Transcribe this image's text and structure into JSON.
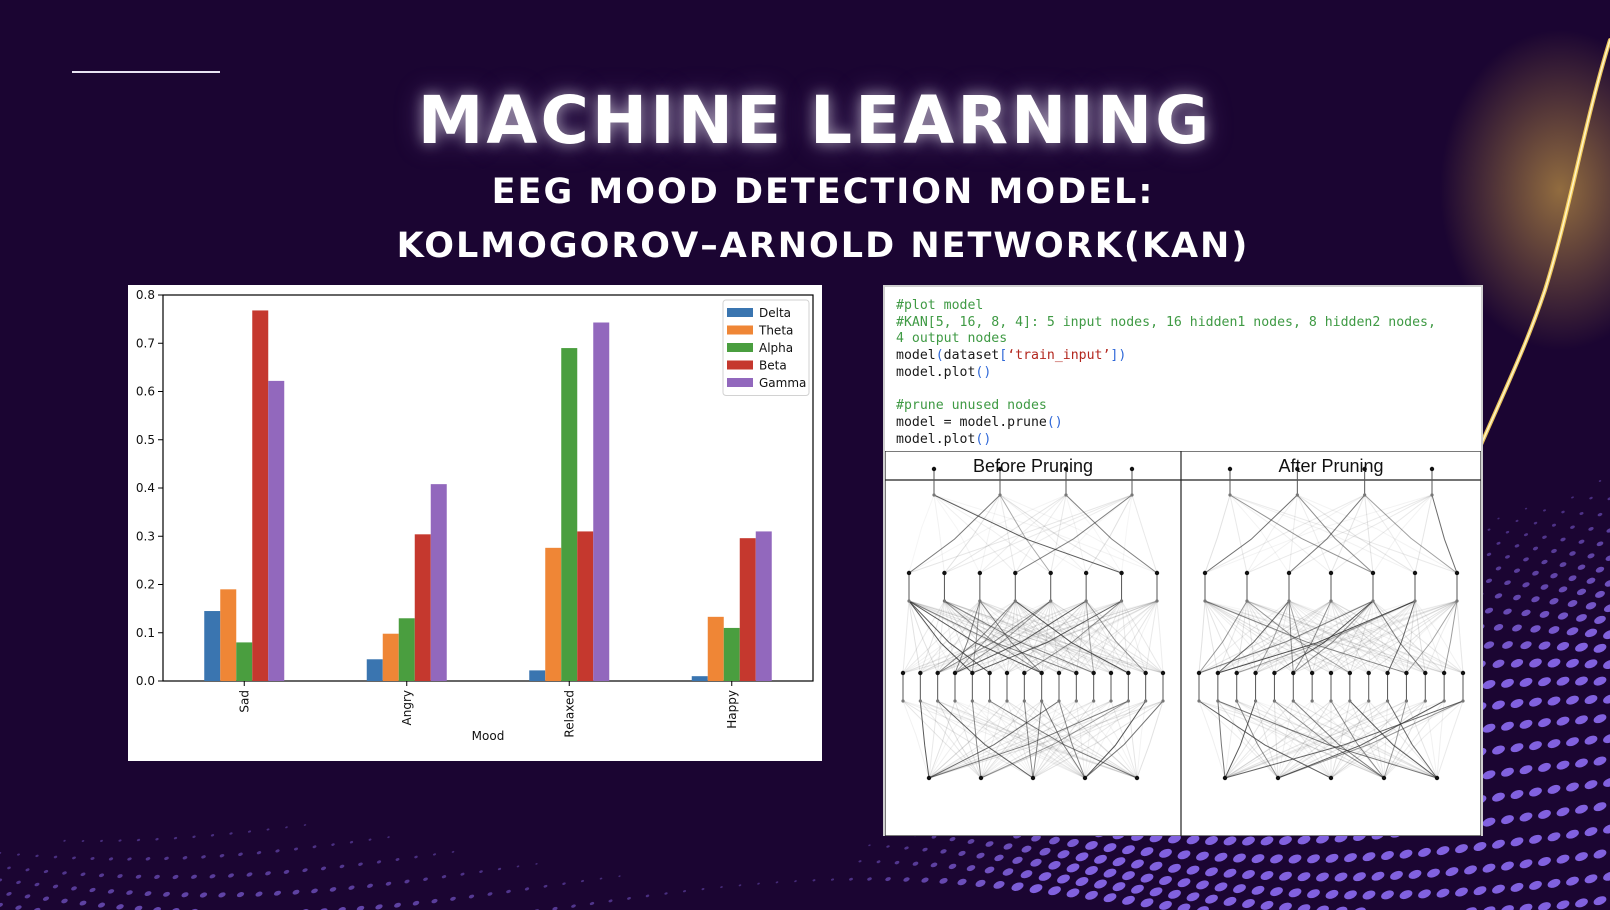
{
  "slide": {
    "title": "MACHINE LEARNING",
    "subtitle_line1": "EEG MOOD DETECTION MODEL:",
    "subtitle_line2": "KOLMOGOROV–ARNOLD NETWORK(KAN)"
  },
  "colors": {
    "background": "#1b0532",
    "dots": "#8d6cf2",
    "glow": "#f2c04a"
  },
  "chart_data": {
    "type": "bar",
    "categories": [
      "Sad",
      "Angry",
      "Relaxed",
      "Happy"
    ],
    "xlabel": "Mood",
    "ylabel": "",
    "ylim": [
      0,
      0.8
    ],
    "yticks": [
      "0.0",
      "0.1",
      "0.2",
      "0.3",
      "0.4",
      "0.5",
      "0.6",
      "0.7",
      "0.8"
    ],
    "legend_position": "top-right",
    "series": [
      {
        "name": "Delta",
        "color": "#3a75b0",
        "values": [
          0.145,
          0.045,
          0.022,
          0.01
        ]
      },
      {
        "name": "Theta",
        "color": "#ef8636",
        "values": [
          0.19,
          0.098,
          0.276,
          0.133
        ]
      },
      {
        "name": "Alpha",
        "color": "#4a9e3f",
        "values": [
          0.08,
          0.13,
          0.69,
          0.11
        ]
      },
      {
        "name": "Beta",
        "color": "#c5382e",
        "values": [
          0.768,
          0.304,
          0.31,
          0.296
        ]
      },
      {
        "name": "Gamma",
        "color": "#9268bd",
        "values": [
          0.622,
          0.408,
          0.743,
          0.31
        ]
      }
    ]
  },
  "code": {
    "line1": "#plot model",
    "line2": "#KAN[5, 16, 8, 4]: 5 input nodes, 16 hidden1 nodes, 8 hidden2 nodes,",
    "line3": "4 output nodes",
    "line4_a": "model",
    "line4_b": "(",
    "line4_c": "dataset",
    "line4_d": "[",
    "line4_e": "‘train_input’",
    "line4_f": "])",
    "line5_a": "model.plot",
    "line5_b": "()",
    "line7": "#prune unused nodes",
    "line8_a": "model = model.prune",
    "line8_b": "()",
    "line9_a": "model.plot",
    "line9_b": "()"
  },
  "network": {
    "before_label": "Before Pruning",
    "after_label": "After Pruning"
  }
}
